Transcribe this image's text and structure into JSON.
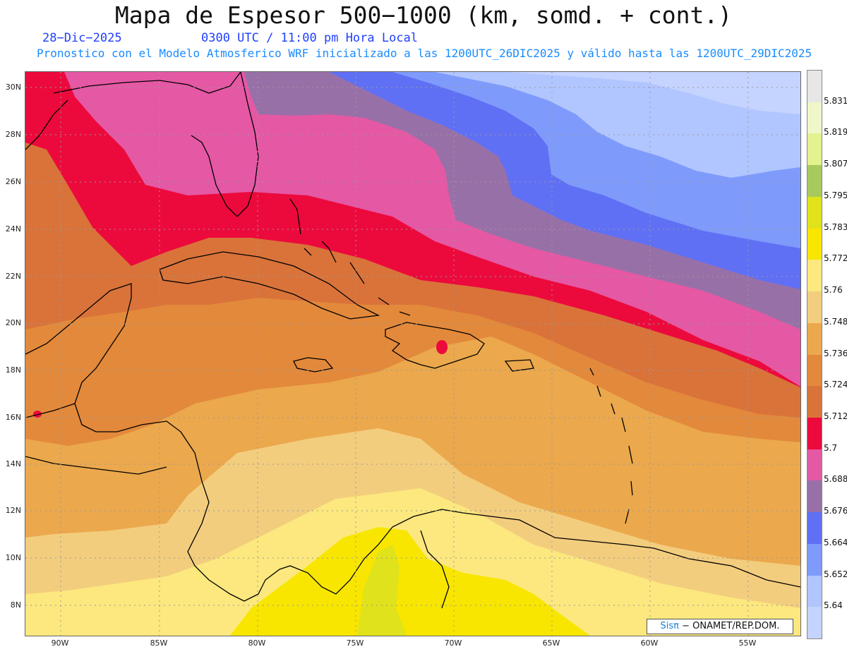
{
  "header": {
    "title": "Mapa de Espesor 500−1000 (km, somd. + cont.)",
    "date": "28−Dic−2025",
    "time": "0300 UTC / 11:00 pm Hora Local",
    "model_line": "Pronostico con el Modelo Atmosferico WRF inicializado a las 1200UTC_26DIC2025 y válido hasta las  1200UTC_29DIC2025"
  },
  "axes": {
    "lat_labels": [
      "30N",
      "28N",
      "26N",
      "24N",
      "22N",
      "20N",
      "18N",
      "16N",
      "14N",
      "12N",
      "10N",
      "8N"
    ],
    "lon_labels": [
      "90W",
      "85W",
      "80W",
      "75W",
      "70W",
      "65W",
      "60W",
      "55W"
    ]
  },
  "colorbar": {
    "levels": [
      "5.831",
      "5.819",
      "5.807",
      "5.795",
      "5.783",
      "5.772",
      "5.76",
      "5.748",
      "5.736",
      "5.724",
      "5.712",
      "5.7",
      "5.688",
      "5.676",
      "5.664",
      "5.652",
      "5.64"
    ],
    "colors": [
      "#e6e6e6",
      "#eff7c8",
      "#e3f28f",
      "#a8c95c",
      "#e0e21c",
      "#f8e600",
      "#fce87e",
      "#f3cd7e",
      "#eba84c",
      "#e3893b",
      "#d9733a",
      "#ec0a3c",
      "#e458a4",
      "#9870a8",
      "#6070f4",
      "#7e9bfc",
      "#b1c5ff",
      "#c5d3ff"
    ]
  },
  "credit": {
    "brand": "Sisπ",
    "text": " − ONAMET/REP.DOM."
  }
}
